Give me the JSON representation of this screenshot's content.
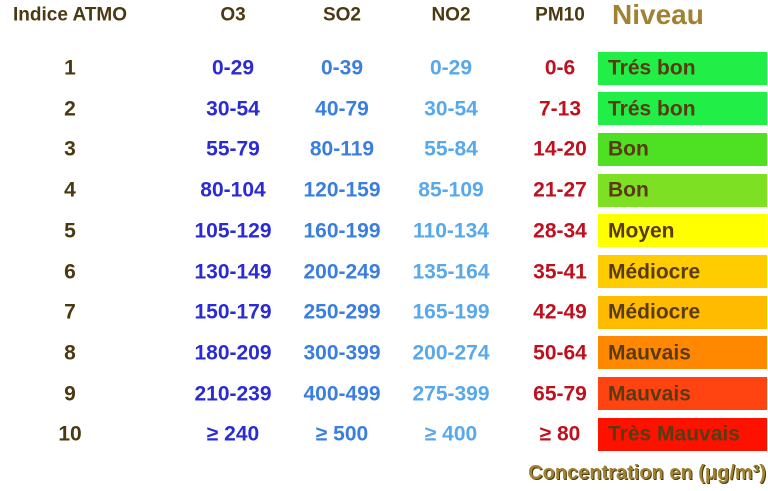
{
  "header": [
    "Indice ATMO",
    "O3",
    "SO2",
    "NO2",
    "PM10",
    "Niveau"
  ],
  "rows": [
    {
      "cells": [
        "1",
        "0-29",
        "0-39",
        "0-29",
        "0-6"
      ],
      "level": "Trés bon",
      "color": "#22ee48"
    },
    {
      "cells": [
        "2",
        "30-54",
        "40-79",
        "30-54",
        "7-13"
      ],
      "level": "Trés bon",
      "color": "#22ee48"
    },
    {
      "cells": [
        "3",
        "55-79",
        "80-119",
        "55-84",
        "14-20"
      ],
      "level": "Bon",
      "color": "#4ee022"
    },
    {
      "cells": [
        "4",
        "80-104",
        "120-159",
        "85-109",
        "21-27"
      ],
      "level": "Bon",
      "color": "#7ee022"
    },
    {
      "cells": [
        "5",
        "105-129",
        "160-199",
        "110-134",
        "28-34"
      ],
      "level": "Moyen",
      "color": "#ffff00"
    },
    {
      "cells": [
        "6",
        "130-149",
        "200-249",
        "135-164",
        "35-41"
      ],
      "level": "Médiocre",
      "color": "#ffcc00"
    },
    {
      "cells": [
        "7",
        "150-179",
        "250-299",
        "165-199",
        "42-49"
      ],
      "level": "Médiocre",
      "color": "#ffbb00"
    },
    {
      "cells": [
        "8",
        "180-209",
        "300-399",
        "200-274",
        "50-64"
      ],
      "level": "Mauvais",
      "color": "#ff8800"
    },
    {
      "cells": [
        "9",
        "210-239",
        "400-499",
        "275-399",
        "65-79"
      ],
      "level": "Mauvais",
      "color": "#ff4411"
    },
    {
      "cells": [
        "10",
        "≥ 240",
        "≥ 500",
        "≥ 400",
        "≥ 80"
      ],
      "level": "Très Mauvais",
      "color": "#ff1100"
    }
  ],
  "footer": "Concentration en (μg/m³)"
}
